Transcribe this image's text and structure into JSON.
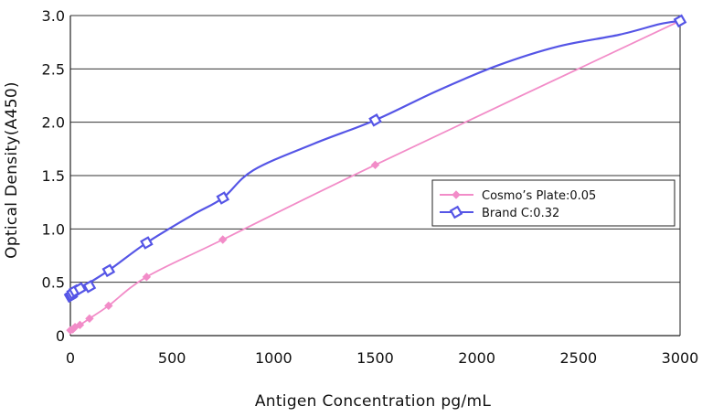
{
  "chart_data": {
    "type": "line",
    "xlabel": "Antigen Concentration pg/mL",
    "ylabel": "Optical Density(A450)",
    "xlim": [
      0,
      3000
    ],
    "ylim": [
      0,
      3.0
    ],
    "xticks": [
      0,
      500,
      1000,
      1500,
      2000,
      2500,
      3000
    ],
    "yticks": [
      0,
      0.5,
      1.0,
      1.5,
      2.0,
      2.5,
      3.0
    ],
    "xtick_labels": [
      "0",
      "500",
      "1000",
      "1500",
      "2000",
      "2500",
      "3000"
    ],
    "ytick_labels": [
      "0",
      "0.5",
      "1.0",
      "1.5",
      "2.0",
      "2.5",
      "3.0"
    ],
    "grid": "horizontal",
    "legend": "right",
    "series": [
      {
        "name": "Cosmo’s Plate:0.05",
        "color": "#f28cc8",
        "marker": "diamond",
        "x": [
          0,
          12,
          23,
          47,
          94,
          188,
          375,
          750,
          1500,
          3000
        ],
        "y": [
          0.05,
          0.06,
          0.08,
          0.1,
          0.16,
          0.28,
          0.55,
          0.9,
          1.6,
          2.95
        ],
        "curve_x": [
          0,
          12,
          23,
          47,
          94,
          188,
          375,
          750,
          1500,
          3000
        ],
        "curve_y": [
          0.05,
          0.06,
          0.08,
          0.1,
          0.16,
          0.28,
          0.55,
          0.9,
          1.6,
          2.95
        ]
      },
      {
        "name": "Brand C:0.32",
        "color": "#5555e6",
        "marker": "open-diamond",
        "x": [
          0,
          6,
          12,
          23,
          47,
          94,
          188,
          375,
          750,
          1500,
          3000
        ],
        "y": [
          0.37,
          0.38,
          0.4,
          0.42,
          0.44,
          0.46,
          0.61,
          0.87,
          1.29,
          2.02,
          2.95
        ],
        "curve_x": [
          0,
          47,
          188,
          375,
          600,
          750,
          900,
          1200,
          1500,
          1800,
          2100,
          2400,
          2700,
          2900,
          3000
        ],
        "curve_y": [
          0.37,
          0.44,
          0.61,
          0.87,
          1.13,
          1.29,
          1.55,
          1.8,
          2.02,
          2.29,
          2.53,
          2.71,
          2.82,
          2.92,
          2.95
        ]
      }
    ]
  }
}
